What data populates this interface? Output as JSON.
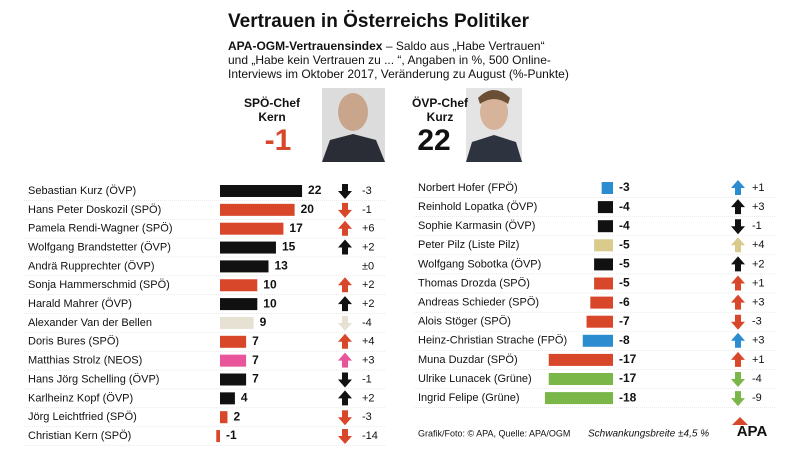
{
  "header": {
    "title": "Vertrauen in Österreichs Politiker",
    "subtitle_bold": "APA-OGM-Vertrauensindex",
    "subtitle_lines": [
      " – Saldo aus „Habe Vertrauen“",
      "und „Habe kein Vertrauen zu ... “, Angaben in %, 500 Online-",
      "Interviews im Oktober 2017, Veränderung zu August (%-Punkte)"
    ],
    "highlights": [
      {
        "label_lines": [
          "SPÖ-Chef",
          "Kern"
        ],
        "value": -1,
        "color": "#d9472b"
      },
      {
        "label_lines": [
          "ÖVP-Chef",
          "Kurz"
        ],
        "value": 22,
        "color": "#111111"
      }
    ]
  },
  "chart_data": [
    {
      "type": "bar",
      "categories": [
        "Sebastian Kurz (ÖVP)",
        "Hans Peter Doskozil (SPÖ)",
        "Pamela Rendi-Wagner (SPÖ)",
        "Wolfgang Brandstetter (ÖVP)",
        "Andrä Rupprechter (ÖVP)",
        "Sonja Hammerschmid (SPÖ)",
        "Harald Mahrer (ÖVP)",
        "Alexander Van der Bellen",
        "Doris Bures (SPÖ)",
        "Matthias Strolz (NEOS)",
        "Hans Jörg Schelling (ÖVP)",
        "Karlheinz Kopf (ÖVP)",
        "Jörg Leichtfried (SPÖ)",
        "Christian Kern (SPÖ)"
      ],
      "values": [
        22,
        20,
        17,
        15,
        13,
        10,
        10,
        9,
        7,
        7,
        7,
        4,
        2,
        -1
      ],
      "colors": [
        "#111111",
        "#d9472b",
        "#d9472b",
        "#111111",
        "#111111",
        "#d9472b",
        "#111111",
        "#e6e1d3",
        "#d9472b",
        "#e8559a",
        "#111111",
        "#111111",
        "#d9472b",
        "#d9472b"
      ],
      "changes": [
        -3,
        -1,
        6,
        2,
        0,
        2,
        2,
        -4,
        4,
        3,
        -1,
        2,
        -3,
        -14
      ],
      "change_labels": [
        "-3",
        "-1",
        "+6",
        "+2",
        "±0",
        "+2",
        "+2",
        "-4",
        "+4",
        "+3",
        "-1",
        "+2",
        "-3",
        "-14"
      ]
    },
    {
      "type": "bar",
      "categories": [
        "Norbert Hofer (FPÖ)",
        "Reinhold Lopatka (ÖVP)",
        "Sophie Karmasin (ÖVP)",
        "Peter Pilz (Liste Pilz)",
        "Wolfgang Sobotka (ÖVP)",
        "Thomas Drozda (SPÖ)",
        "Andreas Schieder (SPÖ)",
        "Alois Stöger (SPÖ)",
        "Heinz-Christian Strache (FPÖ)",
        "Muna Duzdar (SPÖ)",
        "Ulrike Lunacek (Grüne)",
        "Ingrid Felipe (Grüne)"
      ],
      "values": [
        -3,
        -4,
        -4,
        -5,
        -5,
        -5,
        -6,
        -7,
        -8,
        -17,
        -17,
        -18
      ],
      "colors": [
        "#2b8ccf",
        "#111111",
        "#111111",
        "#d8cb8c",
        "#111111",
        "#d9472b",
        "#d9472b",
        "#d9472b",
        "#2b8ccf",
        "#d9472b",
        "#7ab648",
        "#7ab648"
      ],
      "changes": [
        1,
        3,
        -1,
        4,
        2,
        1,
        3,
        -3,
        3,
        1,
        -4,
        -9
      ],
      "change_labels": [
        "+1",
        "+3",
        "-1",
        "+4",
        "+2",
        "+1",
        "+3",
        "-3",
        "+3",
        "+1",
        "-4",
        "-9"
      ]
    }
  ],
  "footer": {
    "source": "Grafik/Foto: © APA, Quelle: APA/OGM",
    "margin": "Schwankungsbreite ±4,5 %",
    "logo": "APA"
  }
}
